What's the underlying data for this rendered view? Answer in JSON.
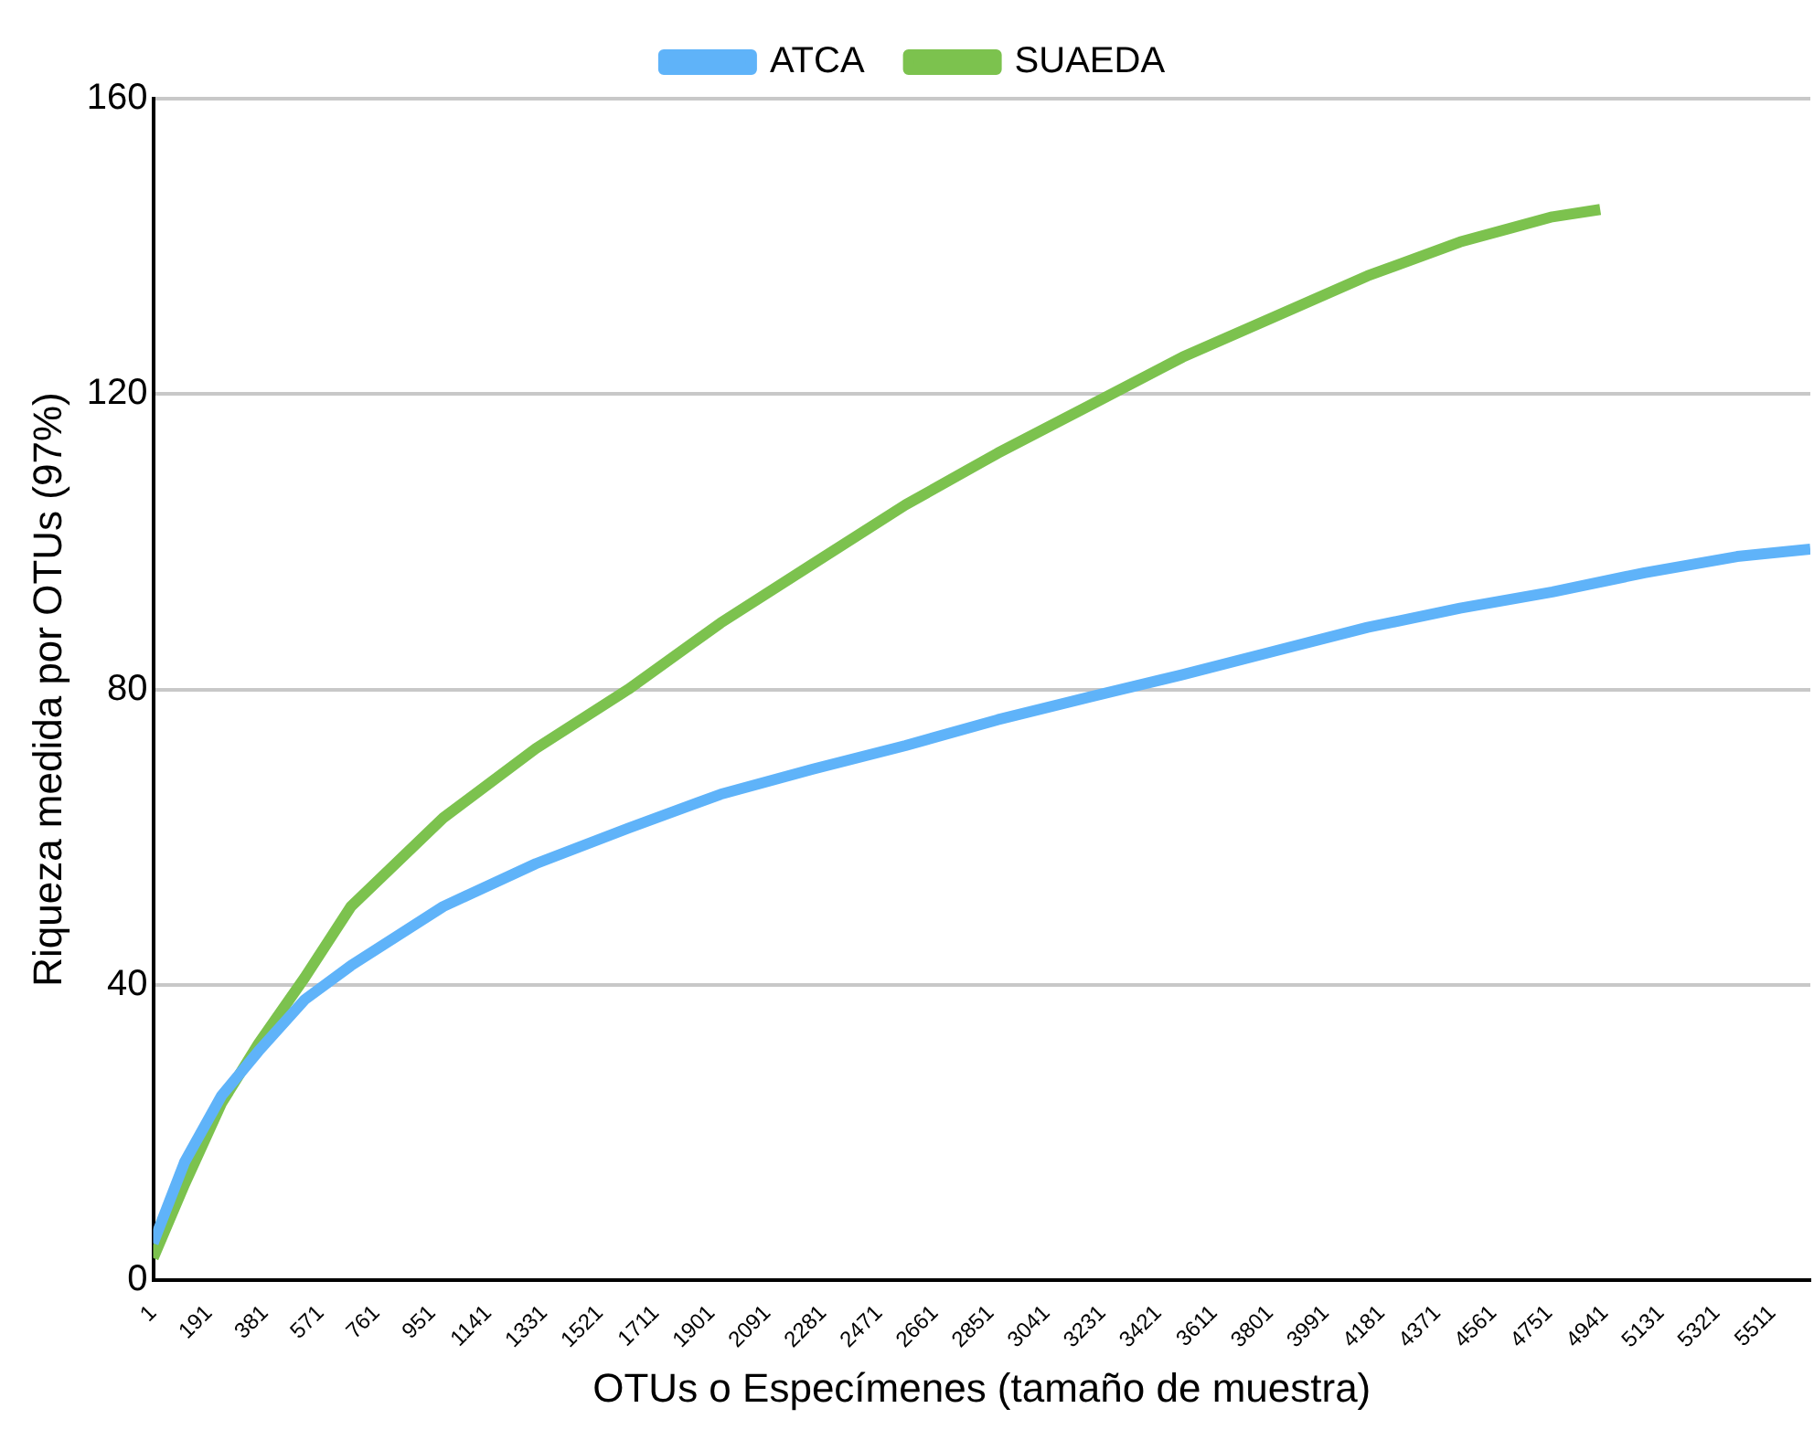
{
  "chart_data": {
    "type": "line",
    "xlabel": "OTUs o Especímenes (tamaño de muestra)",
    "ylabel": "Riqueza medida por OTUs (97%)",
    "xlim": [
      1,
      5640
    ],
    "xticks": [
      1,
      191,
      381,
      571,
      761,
      951,
      1141,
      1331,
      1521,
      1711,
      1901,
      2091,
      2281,
      2471,
      2661,
      2851,
      3041,
      3231,
      3421,
      3611,
      3801,
      3991,
      4181,
      4371,
      4561,
      4751,
      4941,
      5131,
      5321,
      5511
    ],
    "ylim": [
      0,
      160
    ],
    "yticks": [
      0,
      40,
      80,
      120,
      160
    ],
    "grid": "y",
    "legend": "top",
    "marker": "none",
    "line_style": "solid",
    "series": [
      {
        "name": "ATCA",
        "color": "#5fb3f9",
        "x": [
          1,
          108,
          234,
          359,
          517,
          674,
          988,
          1303,
          1617,
          1932,
          2246,
          2561,
          2875,
          3190,
          3504,
          3818,
          4133,
          4448,
          4762,
          5076,
          5391,
          5640
        ],
        "values": [
          5,
          16,
          25,
          31,
          38,
          42.6,
          50.6,
          56.4,
          61.2,
          65.8,
          69.2,
          72.4,
          75.9,
          79,
          82,
          85.2,
          88.4,
          91,
          93.2,
          95.8,
          98,
          99
        ]
      },
      {
        "name": "SUAEDA",
        "color": "#7cc24e",
        "x": [
          1,
          108,
          234,
          359,
          517,
          674,
          988,
          1303,
          1617,
          1932,
          2246,
          2561,
          2875,
          3190,
          3504,
          3818,
          4133,
          4448,
          4762,
          4925
        ],
        "values": [
          3,
          13,
          24,
          32,
          41,
          50.6,
          62.6,
          72,
          80,
          89,
          97,
          105,
          112,
          118.5,
          125,
          130.5,
          136,
          140.6,
          144,
          145
        ]
      }
    ]
  }
}
